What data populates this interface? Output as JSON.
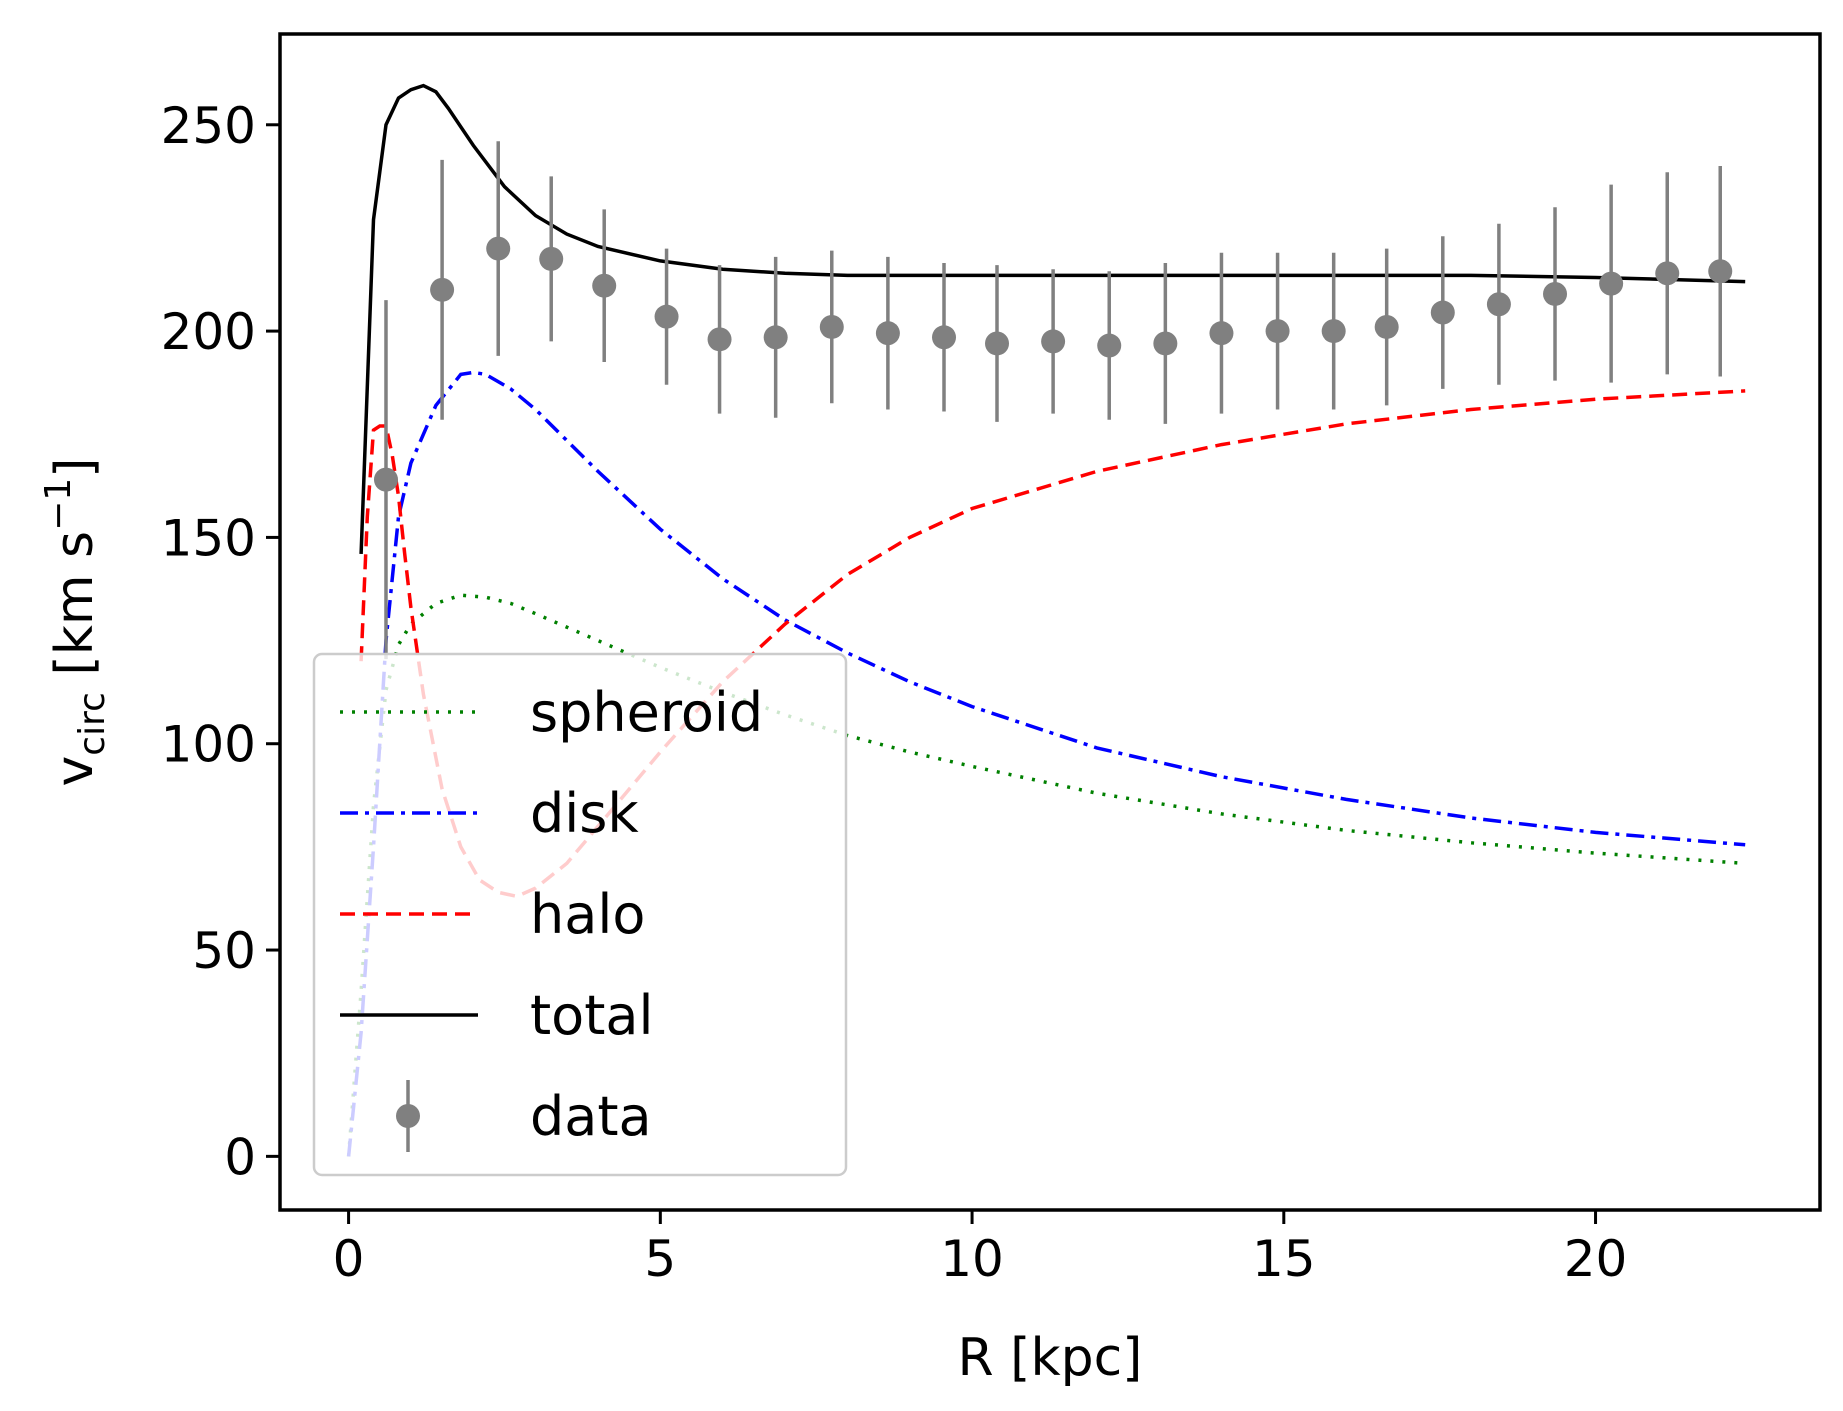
{
  "chart_data": {
    "type": "line",
    "title": "",
    "xlabel": "R [kpc]",
    "ylabel": {
      "main": "v",
      "sub": "circ",
      "unit_open": " [km s",
      "sup": "−1",
      "unit_close": "]"
    },
    "xlim": [
      -1.1,
      23.6
    ],
    "ylim": [
      -13,
      272
    ],
    "xticks": [
      0,
      5,
      10,
      15,
      20
    ],
    "yticks": [
      0,
      50,
      100,
      150,
      200,
      250
    ],
    "grid": false,
    "legend": {
      "placement": "lower-left"
    },
    "series": [
      {
        "name": "spheroid",
        "style": "dotted",
        "color": "#008000",
        "x": [
          0.0,
          0.2,
          0.4,
          0.6,
          0.8,
          1.0,
          1.4,
          1.8,
          2.2,
          2.6,
          3.0,
          4.0,
          5.0,
          6.0,
          7.0,
          8.0,
          9.0,
          10.0,
          12.0,
          14.0,
          16.0,
          18.0,
          20.0,
          22.4
        ],
        "y": [
          0,
          40,
          85,
          113,
          124,
          129,
          134,
          136,
          135.5,
          134,
          131.5,
          125,
          118.5,
          112.5,
          107,
          102,
          98,
          94.5,
          88,
          83,
          79,
          76,
          73.5,
          71
        ]
      },
      {
        "name": "disk",
        "style": "dashdot",
        "color": "#0000ff",
        "x": [
          0.0,
          0.2,
          0.4,
          0.6,
          0.8,
          1.0,
          1.4,
          1.8,
          2.0,
          2.2,
          2.6,
          3.0,
          4.0,
          5.0,
          6.0,
          7.0,
          8.0,
          9.0,
          10.0,
          12.0,
          14.0,
          16.0,
          18.0,
          20.0,
          22.4
        ],
        "y": [
          0,
          30,
          75,
          125,
          155,
          168,
          182,
          189.5,
          190,
          189.5,
          186,
          181,
          166,
          152,
          140,
          130,
          122,
          115,
          109,
          99,
          92,
          86.5,
          82,
          78.5,
          75.5
        ]
      },
      {
        "name": "halo",
        "style": "dashed",
        "color": "#ff0000",
        "x": [
          0.2,
          0.3,
          0.4,
          0.5,
          0.6,
          0.7,
          0.8,
          0.9,
          1.0,
          1.2,
          1.5,
          1.8,
          2.1,
          2.4,
          2.7,
          3.0,
          3.5,
          4.0,
          5.0,
          6.0,
          7.0,
          8.0,
          9.0,
          10.0,
          12.0,
          14.0,
          16.0,
          18.0,
          20.0,
          22.4
        ],
        "y": [
          120,
          155,
          176,
          177,
          177,
          170,
          160,
          146,
          133,
          112,
          89,
          75,
          67,
          64,
          63,
          65,
          71,
          80,
          98,
          115,
          129,
          141,
          150,
          157,
          166,
          172.5,
          177.5,
          181,
          183.5,
          185.5
        ]
      },
      {
        "name": "total",
        "style": "solid",
        "color": "#000000",
        "x": [
          0.2,
          0.4,
          0.6,
          0.8,
          1.0,
          1.2,
          1.4,
          1.6,
          2.0,
          2.5,
          3.0,
          3.5,
          4.0,
          5.0,
          6.0,
          7.0,
          8.0,
          10.0,
          12.0,
          14.0,
          16.0,
          18.0,
          20.0,
          22.4
        ],
        "y": [
          146,
          227,
          250,
          256.5,
          258.5,
          259.5,
          258,
          254,
          245,
          235,
          228,
          223.5,
          220.5,
          217,
          215,
          214,
          213.5,
          213.5,
          213.5,
          213.5,
          213.5,
          213.5,
          213,
          212
        ]
      },
      {
        "name": "data",
        "style": "errorbar",
        "color": "#808080",
        "x": [
          0.6,
          1.5,
          2.4,
          3.25,
          4.1,
          5.1,
          5.95,
          6.85,
          7.75,
          8.65,
          9.55,
          10.4,
          11.3,
          12.2,
          13.1,
          14.0,
          14.9,
          15.8,
          16.65,
          17.55,
          18.45,
          19.35,
          20.25,
          21.15,
          22.0
        ],
        "y": [
          164,
          210,
          220,
          217.5,
          211,
          203.5,
          198,
          198.5,
          201,
          199.5,
          198.5,
          197,
          197.5,
          196.5,
          197,
          199.5,
          200,
          200,
          201,
          204.5,
          206.5,
          209,
          211.5,
          214,
          214.5
        ],
        "yerr": [
          43.5,
          31.5,
          26,
          20,
          18.5,
          16.5,
          18,
          19.5,
          18.5,
          18.5,
          18,
          19,
          17.5,
          18,
          19.5,
          19.5,
          19,
          19,
          19,
          18.5,
          19.5,
          21,
          24,
          24.5,
          25.5
        ]
      }
    ]
  }
}
